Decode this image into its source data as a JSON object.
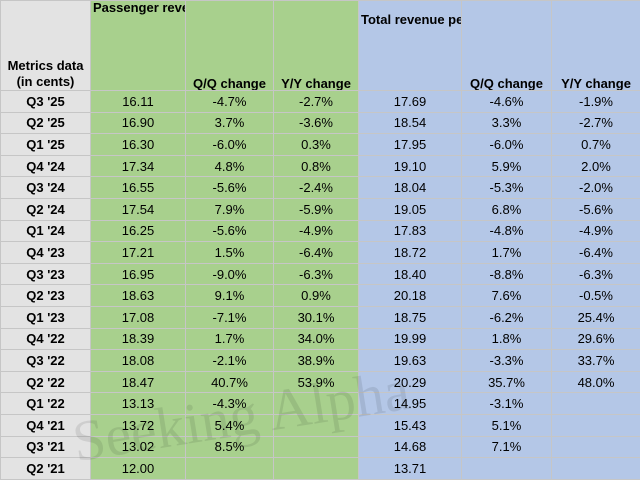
{
  "headers": {
    "label": "Metrics data (in cents)",
    "prasm": "Passenger revenue per available seat mile (PRASM)",
    "qq": "Q/Q change",
    "yy": "Y/Y change",
    "trasm": "Total revenue per available seat mile (TRASM)",
    "qq2": "Q/Q change",
    "yy2": "Y/Y change"
  },
  "rows": [
    {
      "q": "Q3 '25",
      "prasm": "16.11",
      "pqq": "-4.7%",
      "pyy": "-2.7%",
      "trasm": "17.69",
      "tqq": "-4.6%",
      "tyy": "-1.9%"
    },
    {
      "q": "Q2 '25",
      "prasm": "16.90",
      "pqq": "3.7%",
      "pyy": "-3.6%",
      "trasm": "18.54",
      "tqq": "3.3%",
      "tyy": "-2.7%"
    },
    {
      "q": "Q1 '25",
      "prasm": "16.30",
      "pqq": "-6.0%",
      "pyy": "0.3%",
      "trasm": "17.95",
      "tqq": "-6.0%",
      "tyy": "0.7%"
    },
    {
      "q": "Q4 '24",
      "prasm": "17.34",
      "pqq": "4.8%",
      "pyy": "0.8%",
      "trasm": "19.10",
      "tqq": "5.9%",
      "tyy": "2.0%"
    },
    {
      "q": "Q3 '24",
      "prasm": "16.55",
      "pqq": "-5.6%",
      "pyy": "-2.4%",
      "trasm": "18.04",
      "tqq": "-5.3%",
      "tyy": "-2.0%"
    },
    {
      "q": "Q2 '24",
      "prasm": "17.54",
      "pqq": "7.9%",
      "pyy": "-5.9%",
      "trasm": "19.05",
      "tqq": "6.8%",
      "tyy": "-5.6%"
    },
    {
      "q": "Q1 '24",
      "prasm": "16.25",
      "pqq": "-5.6%",
      "pyy": "-4.9%",
      "trasm": "17.83",
      "tqq": "-4.8%",
      "tyy": "-4.9%"
    },
    {
      "q": "Q4 '23",
      "prasm": "17.21",
      "pqq": "1.5%",
      "pyy": "-6.4%",
      "trasm": "18.72",
      "tqq": "1.7%",
      "tyy": "-6.4%"
    },
    {
      "q": "Q3 '23",
      "prasm": "16.95",
      "pqq": "-9.0%",
      "pyy": "-6.3%",
      "trasm": "18.40",
      "tqq": "-8.8%",
      "tyy": "-6.3%"
    },
    {
      "q": "Q2 '23",
      "prasm": "18.63",
      "pqq": "9.1%",
      "pyy": "0.9%",
      "trasm": "20.18",
      "tqq": "7.6%",
      "tyy": "-0.5%"
    },
    {
      "q": "Q1 '23",
      "prasm": "17.08",
      "pqq": "-7.1%",
      "pyy": "30.1%",
      "trasm": "18.75",
      "tqq": "-6.2%",
      "tyy": "25.4%"
    },
    {
      "q": "Q4 '22",
      "prasm": "18.39",
      "pqq": "1.7%",
      "pyy": "34.0%",
      "trasm": "19.99",
      "tqq": "1.8%",
      "tyy": "29.6%"
    },
    {
      "q": "Q3 '22",
      "prasm": "18.08",
      "pqq": "-2.1%",
      "pyy": "38.9%",
      "trasm": "19.63",
      "tqq": "-3.3%",
      "tyy": "33.7%"
    },
    {
      "q": "Q2 '22",
      "prasm": "18.47",
      "pqq": "40.7%",
      "pyy": "53.9%",
      "trasm": "20.29",
      "tqq": "35.7%",
      "tyy": "48.0%"
    },
    {
      "q": "Q1 '22",
      "prasm": "13.13",
      "pqq": "-4.3%",
      "pyy": "",
      "trasm": "14.95",
      "tqq": "-3.1%",
      "tyy": ""
    },
    {
      "q": "Q4 '21",
      "prasm": "13.72",
      "pqq": "5.4%",
      "pyy": "",
      "trasm": "15.43",
      "tqq": "5.1%",
      "tyy": ""
    },
    {
      "q": "Q3 '21",
      "prasm": "13.02",
      "pqq": "8.5%",
      "pyy": "",
      "trasm": "14.68",
      "tqq": "7.1%",
      "tyy": ""
    },
    {
      "q": "Q2 '21",
      "prasm": "12.00",
      "pqq": "",
      "pyy": "",
      "trasm": "13.71",
      "tqq": "",
      "tyy": ""
    }
  ],
  "watermark": "Seeking Alpha",
  "colors": {
    "label_bg": "#e3e3e3",
    "prasm_bg": "#a8d08d",
    "trasm_bg": "#b4c7e7"
  }
}
